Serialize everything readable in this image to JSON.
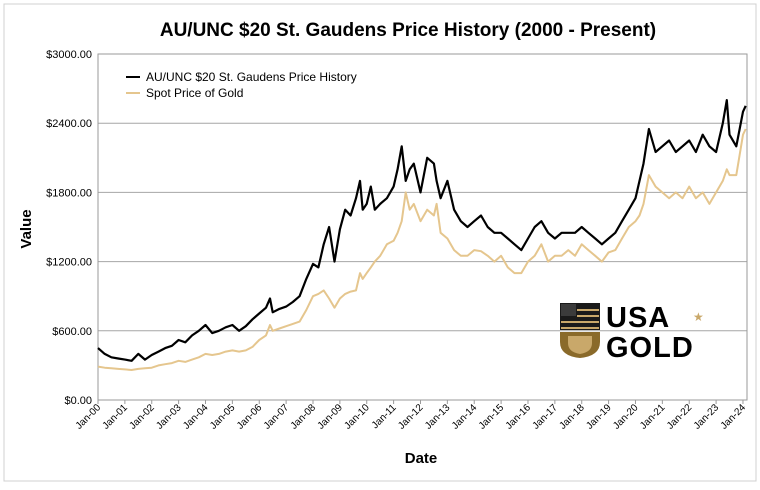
{
  "chart_data": {
    "type": "line",
    "title": "AU/UNC $20 St. Gaudens Price History (2000 - Present)",
    "xlabel": "Date",
    "ylabel": "Value",
    "ylim": [
      0,
      3000
    ],
    "yticks": [
      0,
      600,
      1200,
      1800,
      2400,
      3000
    ],
    "ytick_labels": [
      "$0.00",
      "$600.00",
      "$1200.00",
      "$1800.00",
      "$2400.00",
      "$3000.00"
    ],
    "xlim": [
      2000.0,
      2024.15
    ],
    "xticks": [
      2000,
      2001,
      2002,
      2003,
      2004,
      2005,
      2006,
      2007,
      2008,
      2009,
      2010,
      2011,
      2012,
      2013,
      2014,
      2015,
      2016,
      2017,
      2018,
      2019,
      2020,
      2021,
      2022,
      2023,
      2024
    ],
    "xtick_labels": [
      "Jan-00",
      "Jan-01",
      "Jan-02",
      "Jan-03",
      "Jan-04",
      "Jan-05",
      "Jan-06",
      "Jan-07",
      "Jan-08",
      "Jan-09",
      "Jan-10",
      "Jan-11",
      "Jan-12",
      "Jan-13",
      "Jan-14",
      "Jan-15",
      "Jan-16",
      "Jan-17",
      "Jan-18",
      "Jan-19",
      "Jan-20",
      "Jan-21",
      "Jan-22",
      "Jan-23",
      "Jan-24"
    ],
    "grid": true,
    "legend_position": "top-left",
    "series": [
      {
        "name": "AU/UNC $20 St. Gaudens Price History",
        "color": "#000000",
        "x": [
          2000.0,
          2000.25,
          2000.5,
          2000.75,
          2001.0,
          2001.25,
          2001.5,
          2001.75,
          2002.0,
          2002.25,
          2002.5,
          2002.75,
          2003.0,
          2003.25,
          2003.5,
          2003.75,
          2004.0,
          2004.25,
          2004.5,
          2004.75,
          2005.0,
          2005.25,
          2005.5,
          2005.75,
          2006.0,
          2006.25,
          2006.4,
          2006.5,
          2006.75,
          2007.0,
          2007.25,
          2007.5,
          2007.75,
          2008.0,
          2008.2,
          2008.4,
          2008.6,
          2008.8,
          2009.0,
          2009.2,
          2009.4,
          2009.6,
          2009.75,
          2009.85,
          2010.0,
          2010.15,
          2010.3,
          2010.5,
          2010.75,
          2011.0,
          2011.15,
          2011.3,
          2011.45,
          2011.6,
          2011.75,
          2012.0,
          2012.25,
          2012.5,
          2012.6,
          2012.75,
          2013.0,
          2013.25,
          2013.5,
          2013.75,
          2014.0,
          2014.25,
          2014.5,
          2014.75,
          2015.0,
          2015.25,
          2015.5,
          2015.75,
          2016.0,
          2016.25,
          2016.5,
          2016.75,
          2017.0,
          2017.25,
          2017.5,
          2017.75,
          2018.0,
          2018.25,
          2018.5,
          2018.75,
          2019.0,
          2019.25,
          2019.5,
          2019.75,
          2020.0,
          2020.15,
          2020.3,
          2020.5,
          2020.75,
          2021.0,
          2021.25,
          2021.5,
          2021.75,
          2022.0,
          2022.25,
          2022.5,
          2022.75,
          2023.0,
          2023.25,
          2023.4,
          2023.5,
          2023.75,
          2024.0,
          2024.1
        ],
        "y": [
          450,
          400,
          370,
          360,
          350,
          340,
          400,
          350,
          390,
          420,
          450,
          470,
          520,
          500,
          560,
          600,
          650,
          580,
          600,
          630,
          650,
          600,
          640,
          700,
          750,
          800,
          880,
          760,
          790,
          810,
          850,
          900,
          1050,
          1180,
          1150,
          1350,
          1500,
          1200,
          1480,
          1650,
          1600,
          1750,
          1900,
          1650,
          1700,
          1850,
          1650,
          1700,
          1750,
          1850,
          2000,
          2200,
          1900,
          2000,
          2050,
          1800,
          2100,
          2050,
          1900,
          1750,
          1900,
          1650,
          1550,
          1500,
          1550,
          1600,
          1500,
          1450,
          1450,
          1400,
          1350,
          1300,
          1400,
          1500,
          1550,
          1450,
          1400,
          1450,
          1450,
          1450,
          1500,
          1450,
          1400,
          1350,
          1400,
          1450,
          1550,
          1650,
          1750,
          1900,
          2050,
          2350,
          2150,
          2200,
          2250,
          2150,
          2200,
          2250,
          2150,
          2300,
          2200,
          2150,
          2400,
          2600,
          2300,
          2200,
          2500,
          2550
        ]
      },
      {
        "name": "Spot Price of Gold",
        "color": "#E5C68E",
        "x": [
          2000.0,
          2000.25,
          2000.5,
          2000.75,
          2001.0,
          2001.25,
          2001.5,
          2001.75,
          2002.0,
          2002.25,
          2002.5,
          2002.75,
          2003.0,
          2003.25,
          2003.5,
          2003.75,
          2004.0,
          2004.25,
          2004.5,
          2004.75,
          2005.0,
          2005.25,
          2005.5,
          2005.75,
          2006.0,
          2006.25,
          2006.4,
          2006.5,
          2006.75,
          2007.0,
          2007.25,
          2007.5,
          2007.75,
          2008.0,
          2008.2,
          2008.4,
          2008.6,
          2008.8,
          2009.0,
          2009.2,
          2009.4,
          2009.6,
          2009.75,
          2009.85,
          2010.0,
          2010.15,
          2010.3,
          2010.5,
          2010.75,
          2011.0,
          2011.15,
          2011.3,
          2011.45,
          2011.6,
          2011.75,
          2012.0,
          2012.25,
          2012.5,
          2012.6,
          2012.75,
          2013.0,
          2013.25,
          2013.5,
          2013.75,
          2014.0,
          2014.25,
          2014.5,
          2014.75,
          2015.0,
          2015.25,
          2015.5,
          2015.75,
          2016.0,
          2016.25,
          2016.5,
          2016.75,
          2017.0,
          2017.25,
          2017.5,
          2017.75,
          2018.0,
          2018.25,
          2018.5,
          2018.75,
          2019.0,
          2019.25,
          2019.5,
          2019.75,
          2020.0,
          2020.15,
          2020.3,
          2020.5,
          2020.75,
          2021.0,
          2021.25,
          2021.5,
          2021.75,
          2022.0,
          2022.25,
          2022.5,
          2022.75,
          2023.0,
          2023.25,
          2023.4,
          2023.5,
          2023.75,
          2024.0,
          2024.1
        ],
        "y": [
          290,
          280,
          275,
          270,
          265,
          260,
          270,
          275,
          280,
          300,
          310,
          320,
          340,
          330,
          350,
          370,
          400,
          390,
          400,
          420,
          430,
          420,
          430,
          460,
          520,
          560,
          650,
          600,
          620,
          640,
          660,
          680,
          780,
          900,
          920,
          950,
          880,
          800,
          880,
          920,
          940,
          950,
          1100,
          1050,
          1100,
          1150,
          1200,
          1250,
          1350,
          1380,
          1450,
          1550,
          1800,
          1650,
          1700,
          1550,
          1650,
          1600,
          1700,
          1450,
          1400,
          1300,
          1250,
          1250,
          1300,
          1290,
          1250,
          1200,
          1250,
          1150,
          1100,
          1100,
          1200,
          1250,
          1350,
          1200,
          1250,
          1250,
          1300,
          1250,
          1350,
          1300,
          1250,
          1200,
          1280,
          1300,
          1400,
          1500,
          1550,
          1600,
          1700,
          1950,
          1850,
          1800,
          1750,
          1800,
          1750,
          1850,
          1750,
          1800,
          1700,
          1800,
          1900,
          2000,
          1950,
          1950,
          2300,
          2350
        ]
      }
    ]
  },
  "logo": {
    "text_top": "USA",
    "text_bottom": "GOLD"
  }
}
